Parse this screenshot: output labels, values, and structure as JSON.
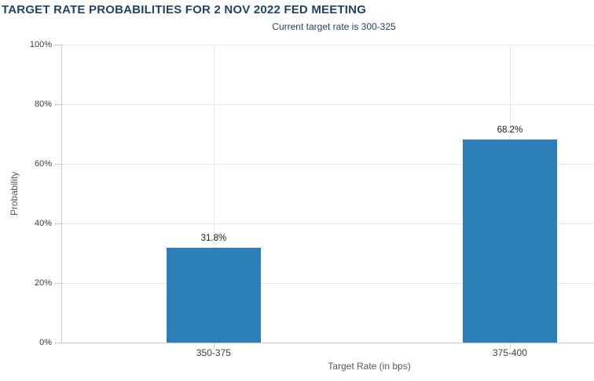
{
  "chart_data": {
    "type": "bar",
    "title": "TARGET RATE PROBABILITIES FOR 2 NOV 2022 FED MEETING",
    "subtitle": "Current target rate is 300-325",
    "categories": [
      "350-375",
      "375-400"
    ],
    "values": [
      31.8,
      68.2
    ],
    "data_labels": [
      "31.8%",
      "68.2%"
    ],
    "xlabel": "Target Rate (in bps)",
    "ylabel": "Probability",
    "ylim": [
      0,
      100
    ],
    "ytick_values": [
      0,
      20,
      40,
      60,
      80,
      100
    ],
    "ytick_labels": [
      "0%",
      "20%",
      "40%",
      "60%",
      "80%",
      "100%"
    ],
    "grid": true,
    "legend_position": "none"
  },
  "colors": {
    "title": "#1f4467",
    "subtitle": "#1f4467",
    "bar": "#2c7fb8",
    "gridline": "#e6e6e6",
    "axis_line": "#c7ccd2",
    "tick_label": "#3f3f3f",
    "axis_title": "#555b61",
    "data_label": "#1a1a1a",
    "background": "#ffffff"
  }
}
